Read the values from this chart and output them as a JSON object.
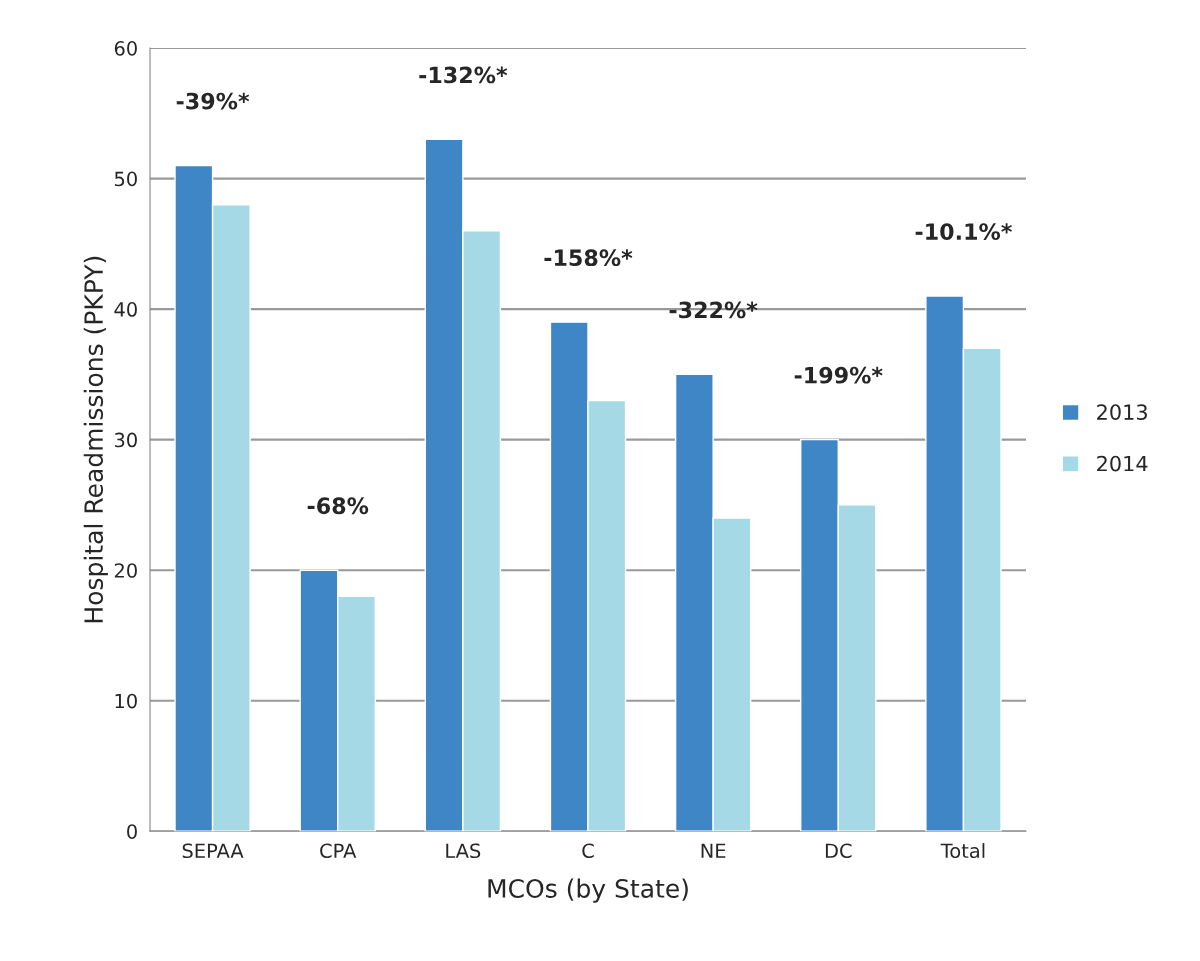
{
  "chart_data": {
    "type": "bar",
    "xlabel": "MCOs (by State)",
    "ylabel": "Hospital Readmissions (PKPY)",
    "categories": [
      "SEPAA",
      "CPA",
      "LAS",
      "C",
      "NE",
      "DC",
      "Total"
    ],
    "series": [
      {
        "name": "2013",
        "color": "#3f86c6",
        "values": [
          51,
          20,
          53,
          39,
          35,
          30,
          41
        ]
      },
      {
        "name": "2014",
        "color": "#a6d9e6",
        "values": [
          48,
          18,
          46,
          33,
          24,
          25,
          37
        ]
      }
    ],
    "annotations": [
      "-39%*",
      "-68%",
      "-132%*",
      "-158%*",
      "-322%*",
      "-199%*",
      "-10.1%*"
    ],
    "ylim": [
      0,
      60
    ],
    "yticks": [
      0,
      10,
      20,
      30,
      40,
      50,
      60
    ],
    "grid": "y",
    "legend": "right"
  }
}
